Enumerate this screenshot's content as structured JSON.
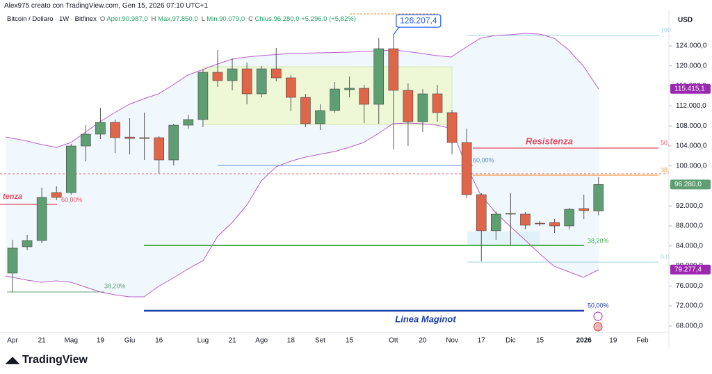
{
  "header": {
    "credit": "Alex975 creato con TradingView.com, Gen 15, 2026 07:10 UTC+1",
    "symbol": "Bitcoin / Dollaro · 1W · Bitfinex",
    "fields": [
      {
        "key": "O",
        "text": "Aper.90.987,0"
      },
      {
        "key": "H",
        "text": "Max.97.850,0"
      },
      {
        "key": "L",
        "text": "Min.90.079,0"
      },
      {
        "key": "C",
        "text": "Chius.96.280,0"
      }
    ],
    "change": "+5.296,0 (+5,82%)",
    "currency": "USD",
    "logo": "TradingView"
  },
  "chart_data": {
    "type": "candlestick",
    "up_color": "#5e9e72",
    "down_color": "#e0664a",
    "open": [
      78560,
      83830,
      85080,
      94670,
      94670,
      103980,
      106350,
      108710,
      105770,
      105650,
      105650,
      101200,
      108150,
      109270,
      118720,
      117050,
      119410,
      114410,
      119410,
      117610,
      113710,
      108430,
      111070,
      115240,
      115520,
      112320,
      123440,
      115110,
      108850,
      114410,
      110660,
      104680,
      94250,
      87030,
      90360,
      90360,
      88550,
      88690,
      88000,
      91470,
      90987
    ],
    "high": [
      85230,
      86190,
      95640,
      95920,
      104400,
      108150,
      111630,
      109270,
      109540,
      110660,
      105930,
      108430,
      110240,
      119270,
      123170,
      121500,
      120660,
      119970,
      123580,
      118160,
      114410,
      112320,
      116770,
      117880,
      116210,
      125530,
      126207.4,
      116490,
      115380,
      116210,
      111210,
      107460,
      94530,
      90920,
      94530,
      90780,
      88970,
      89390,
      91610,
      94250,
      97850
    ],
    "low": [
      74810,
      83130,
      84520,
      93140,
      94250,
      100930,
      105370,
      102590,
      102320,
      101200,
      98420,
      100090,
      107460,
      107740,
      115800,
      115110,
      112320,
      113710,
      116910,
      110940,
      107740,
      107180,
      110660,
      113710,
      108570,
      108430,
      103290,
      103990,
      106760,
      108850,
      102320,
      93560,
      80910,
      85220,
      84240,
      87300,
      88000,
      86610,
      87300,
      89390,
      90079
    ],
    "close": [
      83560,
      85080,
      93700,
      93700,
      103980,
      106350,
      108710,
      105650,
      105500,
      105500,
      101200,
      108150,
      109270,
      118720,
      117050,
      119410,
      114410,
      119410,
      117610,
      113710,
      108430,
      111070,
      115380,
      115520,
      112320,
      123440,
      115110,
      108850,
      114410,
      110660,
      104680,
      94250,
      87030,
      90360,
      90500,
      88140,
      88410,
      88000,
      91330,
      91060,
      96280
    ],
    "ylim": [
      66730,
      131230
    ],
    "yticks": [
      {
        "value": 68000,
        "label": "68.000,0"
      },
      {
        "value": 72000,
        "label": "72.000,0"
      },
      {
        "value": 76000,
        "label": "76.000,0"
      },
      {
        "value": 80000,
        "label": "80.000,0"
      },
      {
        "value": 84000,
        "label": "84.000,0"
      },
      {
        "value": 88000,
        "label": "88.000,0"
      },
      {
        "value": 92000,
        "label": "92.000,0"
      },
      {
        "value": 96000,
        "label": "96.000,0"
      },
      {
        "value": 100000,
        "label": "100.000,0"
      },
      {
        "value": 104000,
        "label": "104.000,0"
      },
      {
        "value": 108000,
        "label": "108.000,0"
      },
      {
        "value": 112000,
        "label": "112.000,0"
      },
      {
        "value": 116000,
        "label": "116.000,0"
      },
      {
        "value": 120000,
        "label": "120.000,0"
      },
      {
        "value": 124000,
        "label": "124.000,0"
      }
    ],
    "xticks": [
      {
        "value": 0,
        "label": "Apr"
      },
      {
        "value": 2,
        "label": "21"
      },
      {
        "value": 4,
        "label": "Mag"
      },
      {
        "value": 6,
        "label": "19"
      },
      {
        "value": 8,
        "label": "Giu"
      },
      {
        "value": 10,
        "label": "16"
      },
      {
        "value": 13,
        "label": "Lug"
      },
      {
        "value": 15,
        "label": "21"
      },
      {
        "value": 17,
        "label": "Ago"
      },
      {
        "value": 19,
        "label": "18"
      },
      {
        "value": 21,
        "label": "Set"
      },
      {
        "value": 23,
        "label": "15"
      },
      {
        "value": 26,
        "label": "Ott"
      },
      {
        "value": 28,
        "label": "20"
      },
      {
        "value": 30,
        "label": "Nov"
      },
      {
        "value": 32,
        "label": "17"
      },
      {
        "value": 34,
        "label": "Dic"
      },
      {
        "value": 36,
        "label": "15"
      },
      {
        "value": 39,
        "label": "2026"
      },
      {
        "value": 41,
        "label": "19"
      },
      {
        "value": 43,
        "label": "Feb"
      }
    ],
    "high_label": "126.207,4",
    "price_labels": [
      {
        "value": 115415.1,
        "label": "115.415,1",
        "color": "#9c27b0"
      },
      {
        "value": 96280,
        "label": "96.280,0",
        "color": "#5e9e72"
      },
      {
        "value": 79277.4,
        "label": "79.277,4",
        "color": "#9c27b0"
      }
    ],
    "annotations": {
      "resistance": "Resistenza",
      "resistance_left": "tenza",
      "maginot": "Linea Maginot",
      "fib_a": "60,00%",
      "fib_b": "60,00%",
      "fib_c": "38,20%",
      "fib_d": "38,20%",
      "fib_e": "50,00%",
      "fib_f": "50,",
      "fib_g": "38,",
      "fib_h": "0,0",
      "fib_i": "100"
    }
  }
}
